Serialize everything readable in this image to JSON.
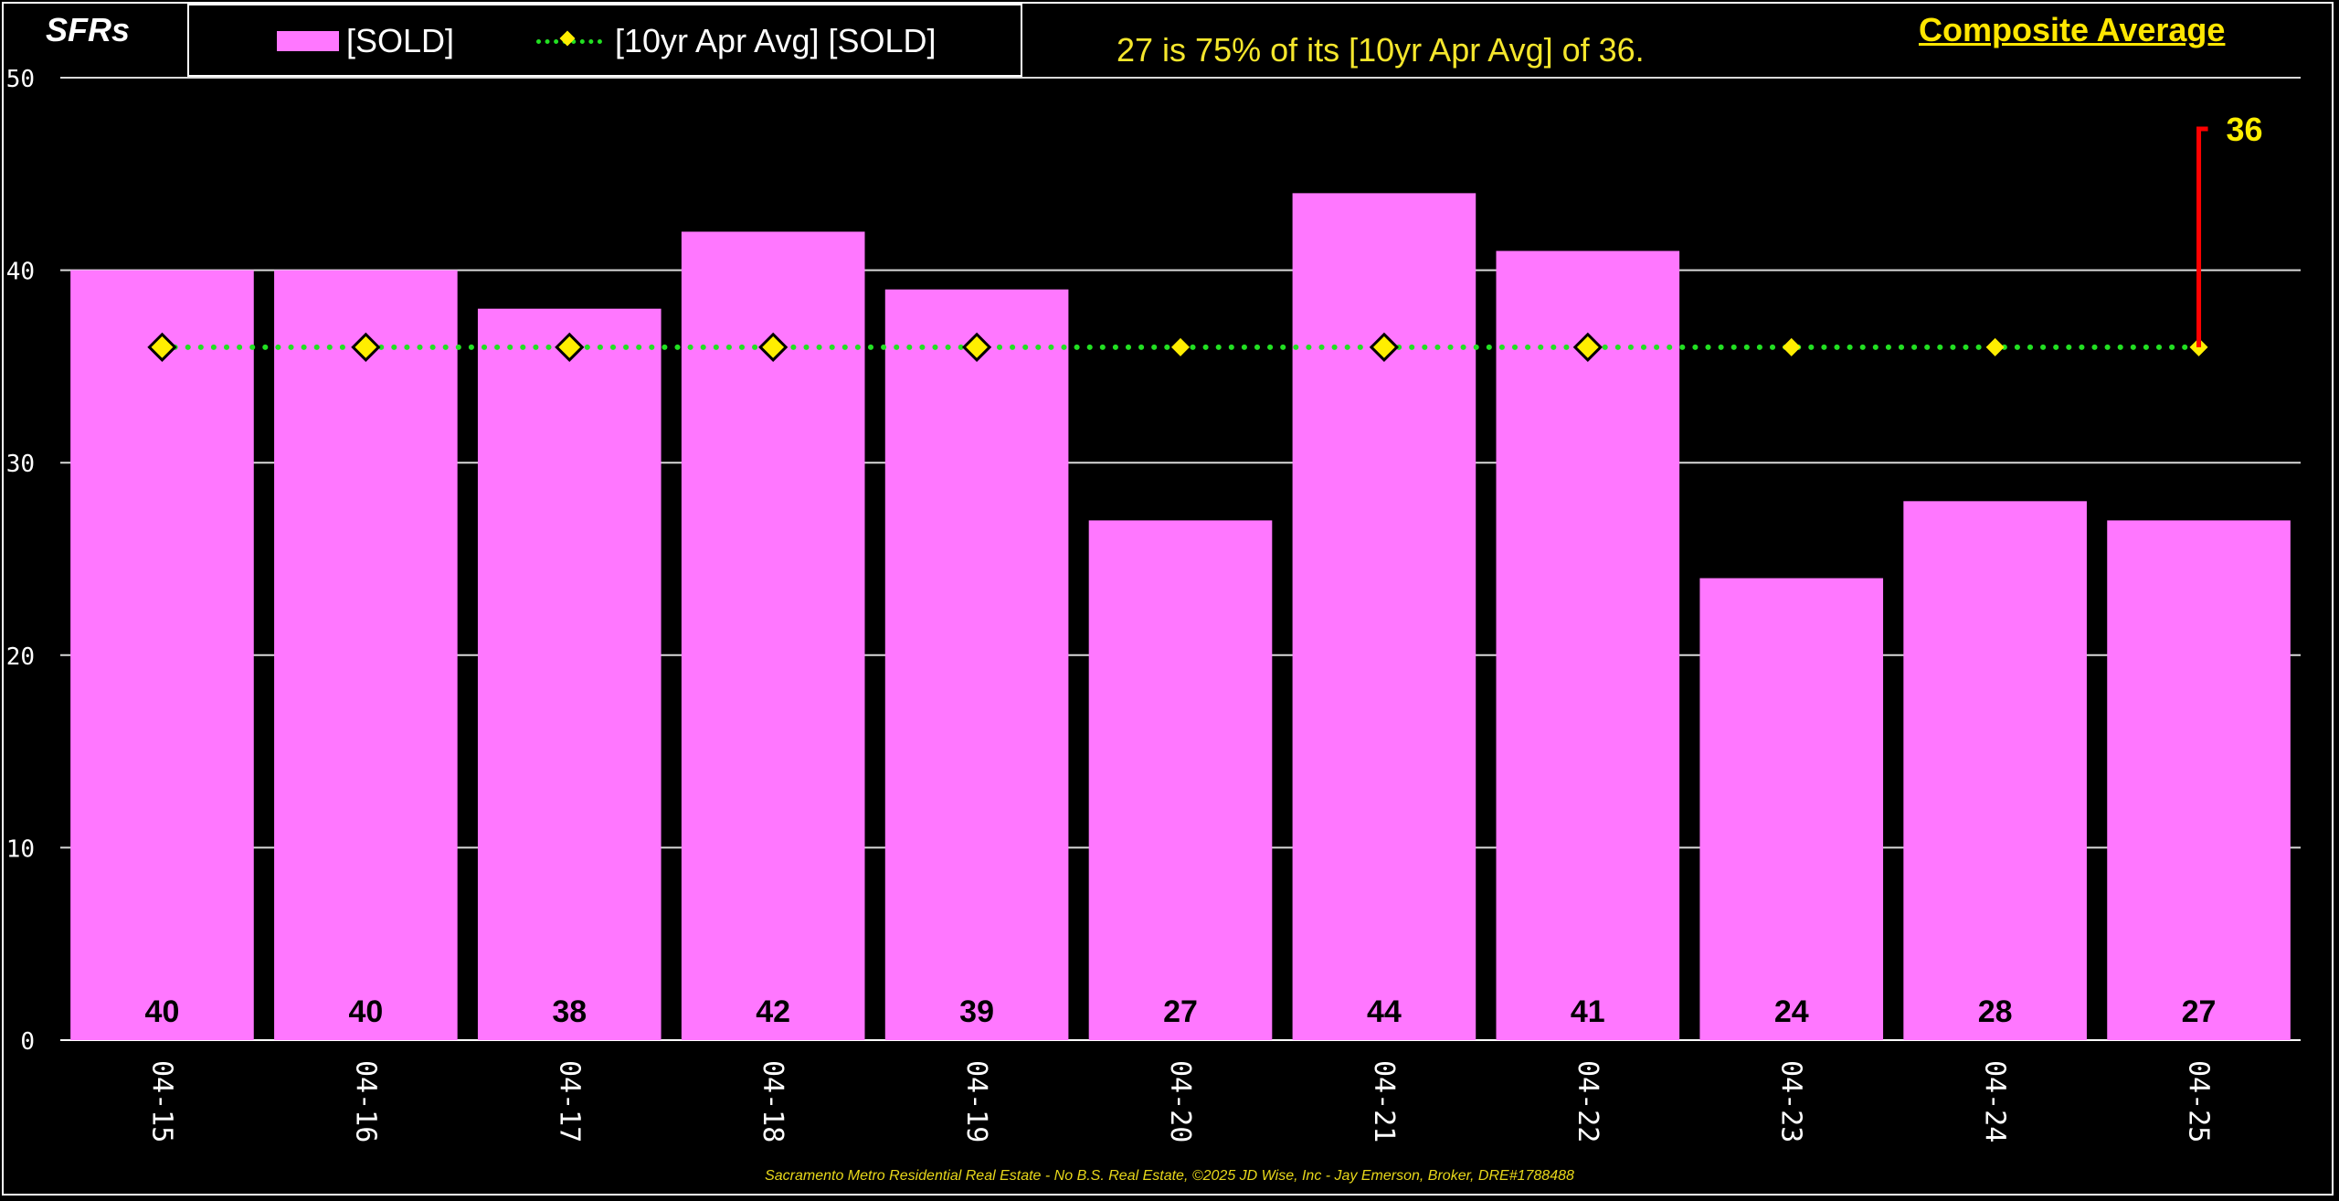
{
  "chart_data": {
    "type": "bar",
    "y_axis_title": "SFRs",
    "categories": [
      "04-15",
      "04-16",
      "04-17",
      "04-18",
      "04-19",
      "04-20",
      "04-21",
      "04-22",
      "04-23",
      "04-24",
      "04-25"
    ],
    "series": [
      {
        "name": "[SOLD]",
        "type": "bar",
        "color": "#ff77ff",
        "values": [
          40,
          40,
          38,
          42,
          39,
          27,
          44,
          41,
          24,
          28,
          27
        ]
      },
      {
        "name": "[10yr Apr Avg] [SOLD]",
        "type": "line",
        "style": "dotted",
        "color": "#22e022",
        "marker": "diamond",
        "marker_color": "#ffee00",
        "values": [
          36,
          36,
          36,
          36,
          36,
          36,
          36,
          36,
          36,
          36,
          36
        ]
      }
    ],
    "ylim": [
      0,
      50
    ],
    "yticks": [
      0,
      10,
      20,
      30,
      40,
      50
    ],
    "grid": true,
    "legend_position": "top-left",
    "annotation_text": "27 is 75% of its [10yr Apr Avg] of 36.",
    "avg_callout": {
      "label": "36",
      "value": 36,
      "color": "#ff0000"
    }
  },
  "header": {
    "composite_label": "Composite Average"
  },
  "footer": {
    "credit": "Sacramento Metro Residential Real Estate - No B.S. Real Estate, ©2025 JD Wise, Inc - Jay Emerson, Broker, DRE#1788488"
  },
  "colors": {
    "background": "#000000",
    "bar": "#ff77ff",
    "avg_line": "#22e022",
    "marker": "#ffee00",
    "text_yellow": "#f5e62c",
    "callout": "#ff0000"
  }
}
